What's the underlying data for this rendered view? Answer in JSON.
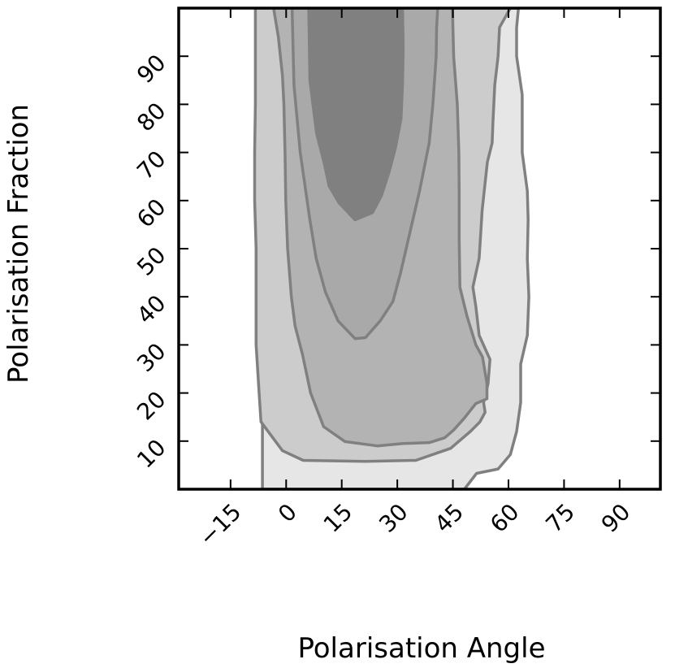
{
  "chart_data": {
    "type": "contour",
    "xlabel": "Polarisation Angle",
    "ylabel": "Polarisation Fraction",
    "xlim": [
      -29,
      101
    ],
    "ylim": [
      0,
      100
    ],
    "x_ticks": [
      -15,
      0,
      15,
      30,
      45,
      60,
      75,
      90
    ],
    "x_tick_labels": [
      "−15",
      "0",
      "15",
      "30",
      "45",
      "60",
      "75",
      "90"
    ],
    "y_ticks": [
      10,
      20,
      30,
      40,
      50,
      60,
      70,
      80,
      90
    ],
    "y_tick_labels": [
      "10",
      "20",
      "30",
      "40",
      "50",
      "60",
      "70",
      "80",
      "90"
    ],
    "grid": false,
    "levels": [
      {
        "level": 1,
        "fill": "#e6e6e6",
        "stroke": "#808080",
        "outline": [
          [
            48.1,
            0
          ],
          [
            51.4,
            3.3
          ],
          [
            57.2,
            4.2
          ],
          [
            60.5,
            7.2
          ],
          [
            62.2,
            12.0
          ],
          [
            63.3,
            18.0
          ],
          [
            63.3,
            26.0
          ],
          [
            65.1,
            32.0
          ],
          [
            65.5,
            40.0
          ],
          [
            65.1,
            48.0
          ],
          [
            65.3,
            56.0
          ],
          [
            65.1,
            62.0
          ],
          [
            63.7,
            70.0
          ],
          [
            63.7,
            78.0
          ],
          [
            63.7,
            82.0
          ],
          [
            62.2,
            90.0
          ],
          [
            62.2,
            96.0
          ],
          [
            62.7,
            100
          ],
          [
            -6.4,
            100
          ],
          [
            -6.4,
            0
          ]
        ]
      },
      {
        "level": 2,
        "fill": "#cccccc",
        "stroke": "#808080",
        "outline": [
          [
            60.5,
            100
          ],
          [
            57.6,
            96.0
          ],
          [
            57.2,
            90.0
          ],
          [
            56.3,
            84.0
          ],
          [
            55.8,
            76.0
          ],
          [
            55.6,
            72.0
          ],
          [
            54.3,
            68.0
          ],
          [
            52.9,
            58.0
          ],
          [
            52.1,
            48.0
          ],
          [
            50.4,
            42.0
          ],
          [
            51.2,
            38.0
          ],
          [
            52.1,
            32.0
          ],
          [
            55.0,
            27.0
          ],
          [
            54.5,
            22.0
          ],
          [
            53.3,
            18.0
          ],
          [
            53.7,
            16.0
          ],
          [
            52.3,
            14.0
          ],
          [
            49.7,
            12.0
          ],
          [
            44.4,
            8.5
          ],
          [
            35.0,
            6.0
          ],
          [
            21.4,
            5.8
          ],
          [
            4.6,
            6.0
          ],
          [
            -1.0,
            8.0
          ],
          [
            -6.8,
            14.0
          ],
          [
            -7.3,
            20.0
          ],
          [
            -8.1,
            30.0
          ],
          [
            -8.1,
            34.0
          ],
          [
            -8.1,
            40.0
          ],
          [
            -8.1,
            50.0
          ],
          [
            -8.5,
            60.0
          ],
          [
            -8.5,
            70.0
          ],
          [
            -8.3,
            80.0
          ],
          [
            -8.3,
            90.0
          ],
          [
            -8.3,
            96.0
          ],
          [
            -8.3,
            100
          ]
        ]
      },
      {
        "level": 3,
        "fill": "#b3b3b3",
        "stroke": "#808080",
        "outline": [
          [
            -3.4,
            100
          ],
          [
            -2.1,
            94.0
          ],
          [
            -1.0,
            86.0
          ],
          [
            -0.6,
            80.0
          ],
          [
            -0.3,
            70.0
          ],
          [
            -0.1,
            60.0
          ],
          [
            0.4,
            50.0
          ],
          [
            1.4,
            40.0
          ],
          [
            2.4,
            34.0
          ],
          [
            4.4,
            28.0
          ],
          [
            6.6,
            20.0
          ],
          [
            10.1,
            13.0
          ],
          [
            15.9,
            9.9
          ],
          [
            24.6,
            9.0
          ],
          [
            31.6,
            9.5
          ],
          [
            38.7,
            9.7
          ],
          [
            42.8,
            10.7
          ],
          [
            45.2,
            12.3
          ],
          [
            48.1,
            14.8
          ],
          [
            51.2,
            17.8
          ],
          [
            54.2,
            18.8
          ],
          [
            54.2,
            22.0
          ],
          [
            53.0,
            27.5
          ],
          [
            51.2,
            30.0
          ],
          [
            48.8,
            36.0
          ],
          [
            46.9,
            42.0
          ],
          [
            46.7,
            52.0
          ],
          [
            46.7,
            62.0
          ],
          [
            46.6,
            70.0
          ],
          [
            46.2,
            80.0
          ],
          [
            45.2,
            90.0
          ],
          [
            45.0,
            96.0
          ],
          [
            44.9,
            100
          ]
        ]
      },
      {
        "level": 4,
        "fill": "#a9a9a9",
        "stroke": "#808080",
        "outline": [
          [
            1.6,
            100
          ],
          [
            2.1,
            84.0
          ],
          [
            3.8,
            70.0
          ],
          [
            6.4,
            56.0
          ],
          [
            8.1,
            48.0
          ],
          [
            10.6,
            41.0
          ],
          [
            14.0,
            35.0
          ],
          [
            18.6,
            31.3
          ],
          [
            21.4,
            31.5
          ],
          [
            25.4,
            35.0
          ],
          [
            28.8,
            39.0
          ],
          [
            30.9,
            45.0
          ],
          [
            33.0,
            52.0
          ],
          [
            36.0,
            62.0
          ],
          [
            38.6,
            72.0
          ],
          [
            39.6,
            80.0
          ],
          [
            40.5,
            90.0
          ],
          [
            40.6,
            96.0
          ],
          [
            40.9,
            100
          ]
        ]
      },
      {
        "level": 5,
        "fill": "#808080",
        "stroke": "#808080",
        "outline": [
          [
            6.1,
            100
          ],
          [
            6.4,
            85.0
          ],
          [
            8.2,
            74.0
          ],
          [
            10.2,
            68.0
          ],
          [
            11.6,
            63.0
          ],
          [
            14.3,
            59.5
          ],
          [
            18.6,
            56.0
          ],
          [
            23.3,
            57.5
          ],
          [
            25.7,
            61.0
          ],
          [
            27.8,
            66.0
          ],
          [
            29.5,
            71.0
          ],
          [
            31.0,
            77.0
          ],
          [
            31.4,
            84.0
          ],
          [
            31.6,
            92.0
          ],
          [
            31.4,
            100
          ]
        ]
      }
    ]
  }
}
